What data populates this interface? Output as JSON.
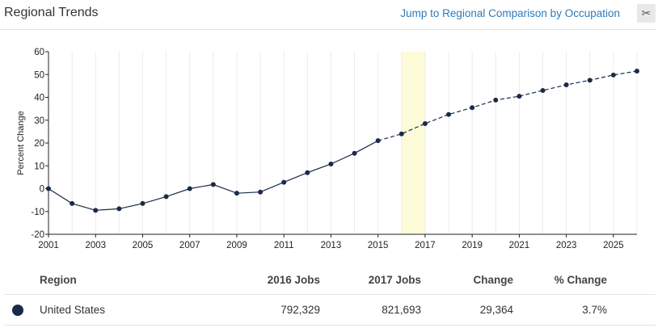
{
  "header": {
    "title": "Regional Trends",
    "jump_link": "Jump to Regional Comparison by Occupation",
    "scissors_icon": "scissors-icon"
  },
  "chart_data": {
    "type": "line",
    "ylabel": "Percent Change",
    "xlabel": "",
    "title": "",
    "xlim": [
      2001,
      2026
    ],
    "ylim": [
      -20,
      60
    ],
    "yticks": [
      60,
      50,
      40,
      30,
      20,
      10,
      0,
      -10,
      -20
    ],
    "xticks": [
      2001,
      2003,
      2005,
      2007,
      2009,
      2011,
      2013,
      2015,
      2017,
      2019,
      2021,
      2023,
      2025
    ],
    "highlight_range": [
      2016,
      2017
    ],
    "highlight_color": "#fdfbd8",
    "line_color": "#1b2a4a",
    "series": [
      {
        "solid_until": 2015,
        "points": [
          {
            "x": 2001,
            "y": 0
          },
          {
            "x": 2002,
            "y": -6.5
          },
          {
            "x": 2003,
            "y": -9.5
          },
          {
            "x": 2004,
            "y": -8.8
          },
          {
            "x": 2005,
            "y": -6.5
          },
          {
            "x": 2006,
            "y": -3.5
          },
          {
            "x": 2007,
            "y": 0
          },
          {
            "x": 2008,
            "y": 1.8
          },
          {
            "x": 2009,
            "y": -2
          },
          {
            "x": 2010,
            "y": -1.5
          },
          {
            "x": 2011,
            "y": 2.8
          },
          {
            "x": 2012,
            "y": 7
          },
          {
            "x": 2013,
            "y": 10.8
          },
          {
            "x": 2014,
            "y": 15.5
          },
          {
            "x": 2015,
            "y": 21
          },
          {
            "x": 2016,
            "y": 24
          },
          {
            "x": 2017,
            "y": 28.5
          },
          {
            "x": 2018,
            "y": 32.5
          },
          {
            "x": 2019,
            "y": 35.5
          },
          {
            "x": 2020,
            "y": 38.8
          },
          {
            "x": 2021,
            "y": 40.5
          },
          {
            "x": 2022,
            "y": 43
          },
          {
            "x": 2023,
            "y": 45.5
          },
          {
            "x": 2024,
            "y": 47.5
          },
          {
            "x": 2025,
            "y": 49.8
          },
          {
            "x": 2026,
            "y": 51.5
          }
        ]
      }
    ]
  },
  "table": {
    "headers": {
      "region": "Region",
      "jobs_2016": "2016 Jobs",
      "jobs_2017": "2017 Jobs",
      "change": "Change",
      "pct_change": "% Change"
    },
    "rows": [
      {
        "region": "United States",
        "jobs_2016": "792,329",
        "jobs_2017": "821,693",
        "change": "29,364",
        "pct_change": "3.7%",
        "color": "#1b2a4a"
      }
    ]
  }
}
